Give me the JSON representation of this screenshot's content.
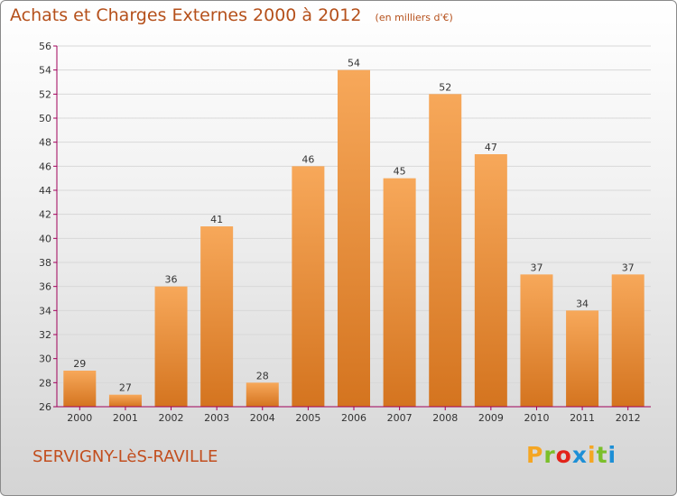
{
  "header": {
    "title": "Achats et Charges Externes 2000 à 2012",
    "unit": "(en milliers d'€)"
  },
  "footer": {
    "location": "SERVIGNY-LèS-RAVILLE",
    "logo_letters": [
      "P",
      "r",
      "o",
      "x",
      "i",
      "t",
      "i"
    ]
  },
  "colors": {
    "title": "#b5501b",
    "bar_top": "#f7a85a",
    "bar_bottom": "#d4741f",
    "axis": "#a0005a",
    "grid": "#d8d8d8",
    "logo": [
      "#f5a623",
      "#7bbf2a",
      "#e2231a",
      "#1d8fd6",
      "#f5a623",
      "#7bbf2a",
      "#1d8fd6"
    ]
  },
  "chart_data": {
    "type": "bar",
    "title": "Achats et Charges Externes 2000 à 2012",
    "subtitle": "(en milliers d'€)",
    "categories": [
      "2000",
      "2001",
      "2002",
      "2003",
      "2004",
      "2005",
      "2006",
      "2007",
      "2008",
      "2009",
      "2010",
      "2011",
      "2012"
    ],
    "values": [
      29,
      27,
      36,
      41,
      28,
      46,
      54,
      45,
      52,
      47,
      37,
      34,
      37
    ],
    "ylim": [
      26,
      56
    ],
    "yticks": [
      26,
      28,
      30,
      32,
      34,
      36,
      38,
      40,
      42,
      44,
      46,
      48,
      50,
      52,
      54,
      56
    ],
    "grid": true,
    "legend": "none"
  }
}
